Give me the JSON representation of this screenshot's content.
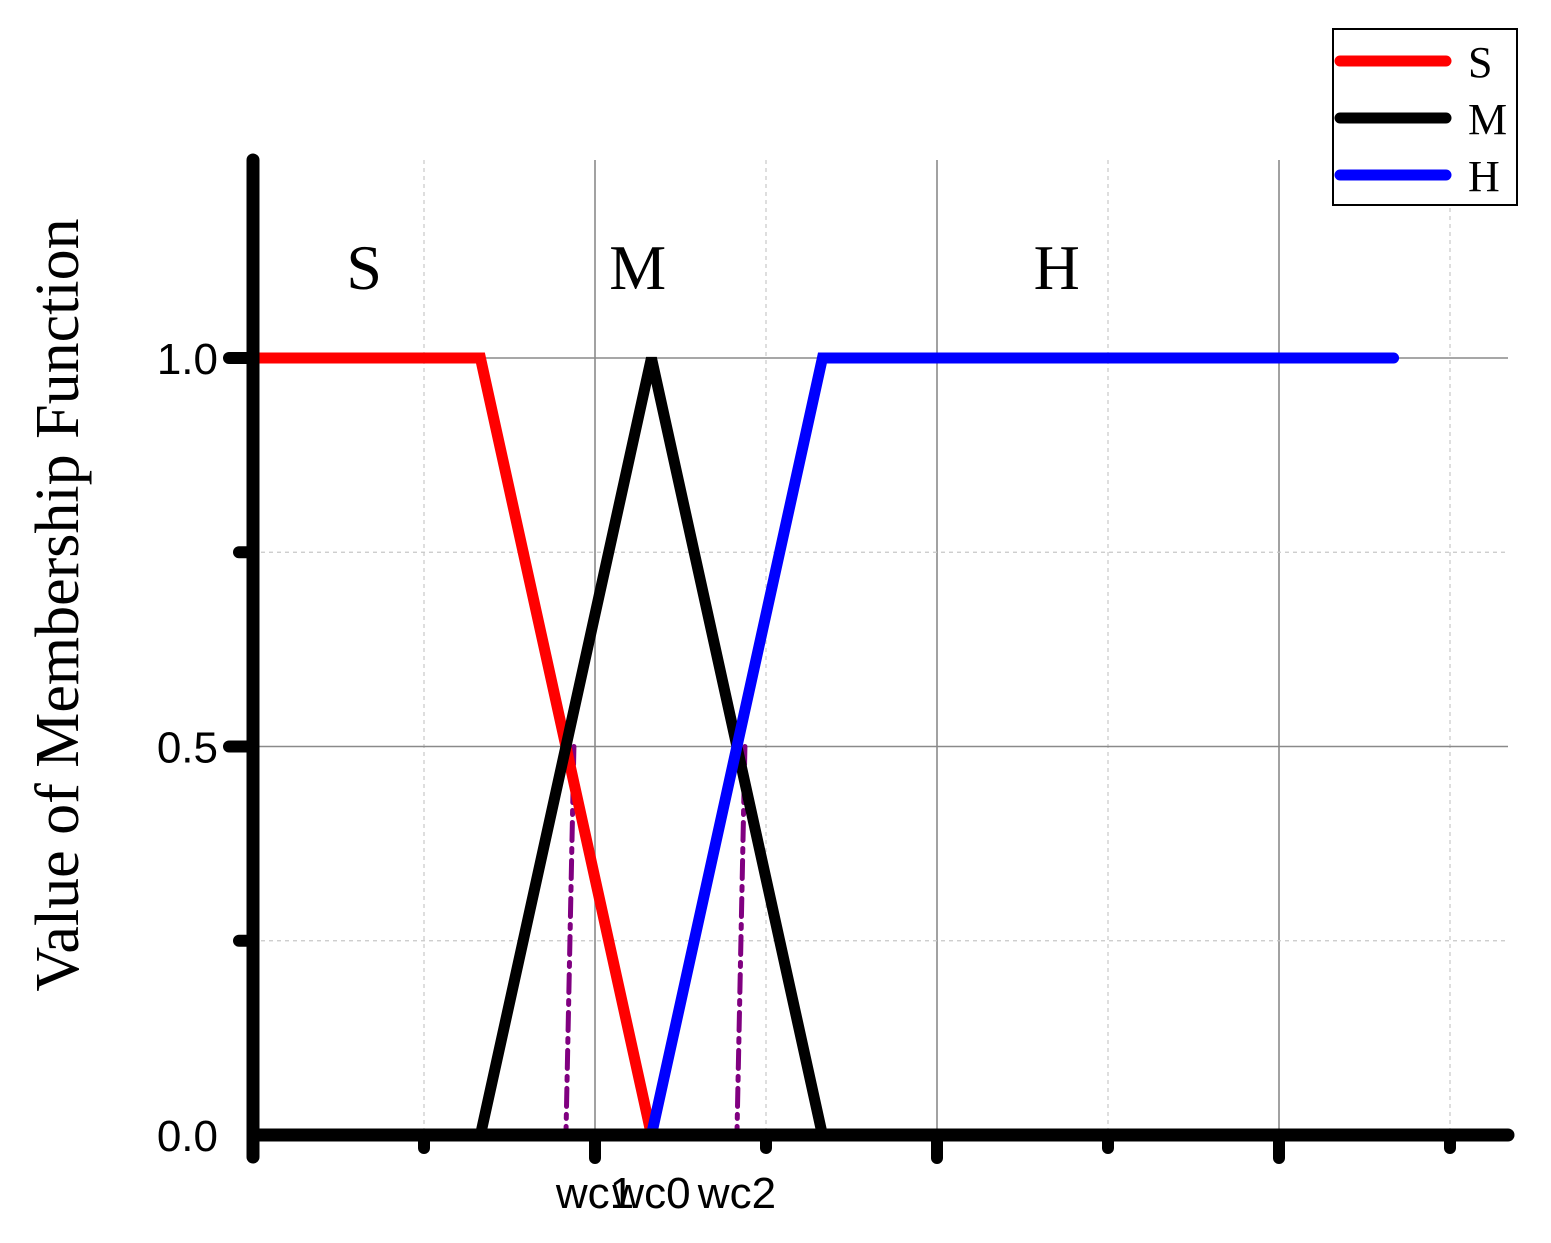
{
  "chart_data": {
    "type": "line",
    "title": "",
    "xlabel": "",
    "ylabel": "Value of  Membership Function",
    "xlim": [
      0,
      7.3
    ],
    "ylim": [
      0,
      1.25
    ],
    "x_ticks": [
      {
        "x": 2.0,
        "label": "wc1"
      },
      {
        "x": 2.33,
        "label": "wc0"
      },
      {
        "x": 2.83,
        "label": "wc2"
      }
    ],
    "y_ticks": [
      {
        "y": 0.0,
        "label": "0.0"
      },
      {
        "y": 0.5,
        "label": "0.5"
      },
      {
        "y": 1.0,
        "label": "1.0"
      }
    ],
    "grid": true,
    "legend_position": "top-right",
    "series": [
      {
        "name": "S",
        "color": "#ff0000",
        "x": [
          0,
          1.33,
          2.33
        ],
        "y": [
          1,
          1,
          0
        ]
      },
      {
        "name": "M",
        "color": "#000000",
        "x": [
          1.33,
          2.33,
          3.33
        ],
        "y": [
          0,
          1,
          0
        ]
      },
      {
        "name": "H",
        "color": "#0000ff",
        "x": [
          2.33,
          3.33,
          6.67
        ],
        "y": [
          0,
          1,
          1
        ]
      }
    ],
    "dropdowns": [
      {
        "x": 1.83,
        "color": "#800080"
      },
      {
        "x": 2.83,
        "color": "#800080"
      }
    ],
    "region_labels": [
      {
        "text": "S",
        "x": 0.65
      },
      {
        "text": "M",
        "x": 2.25
      },
      {
        "text": "H",
        "x": 4.7
      }
    ]
  }
}
